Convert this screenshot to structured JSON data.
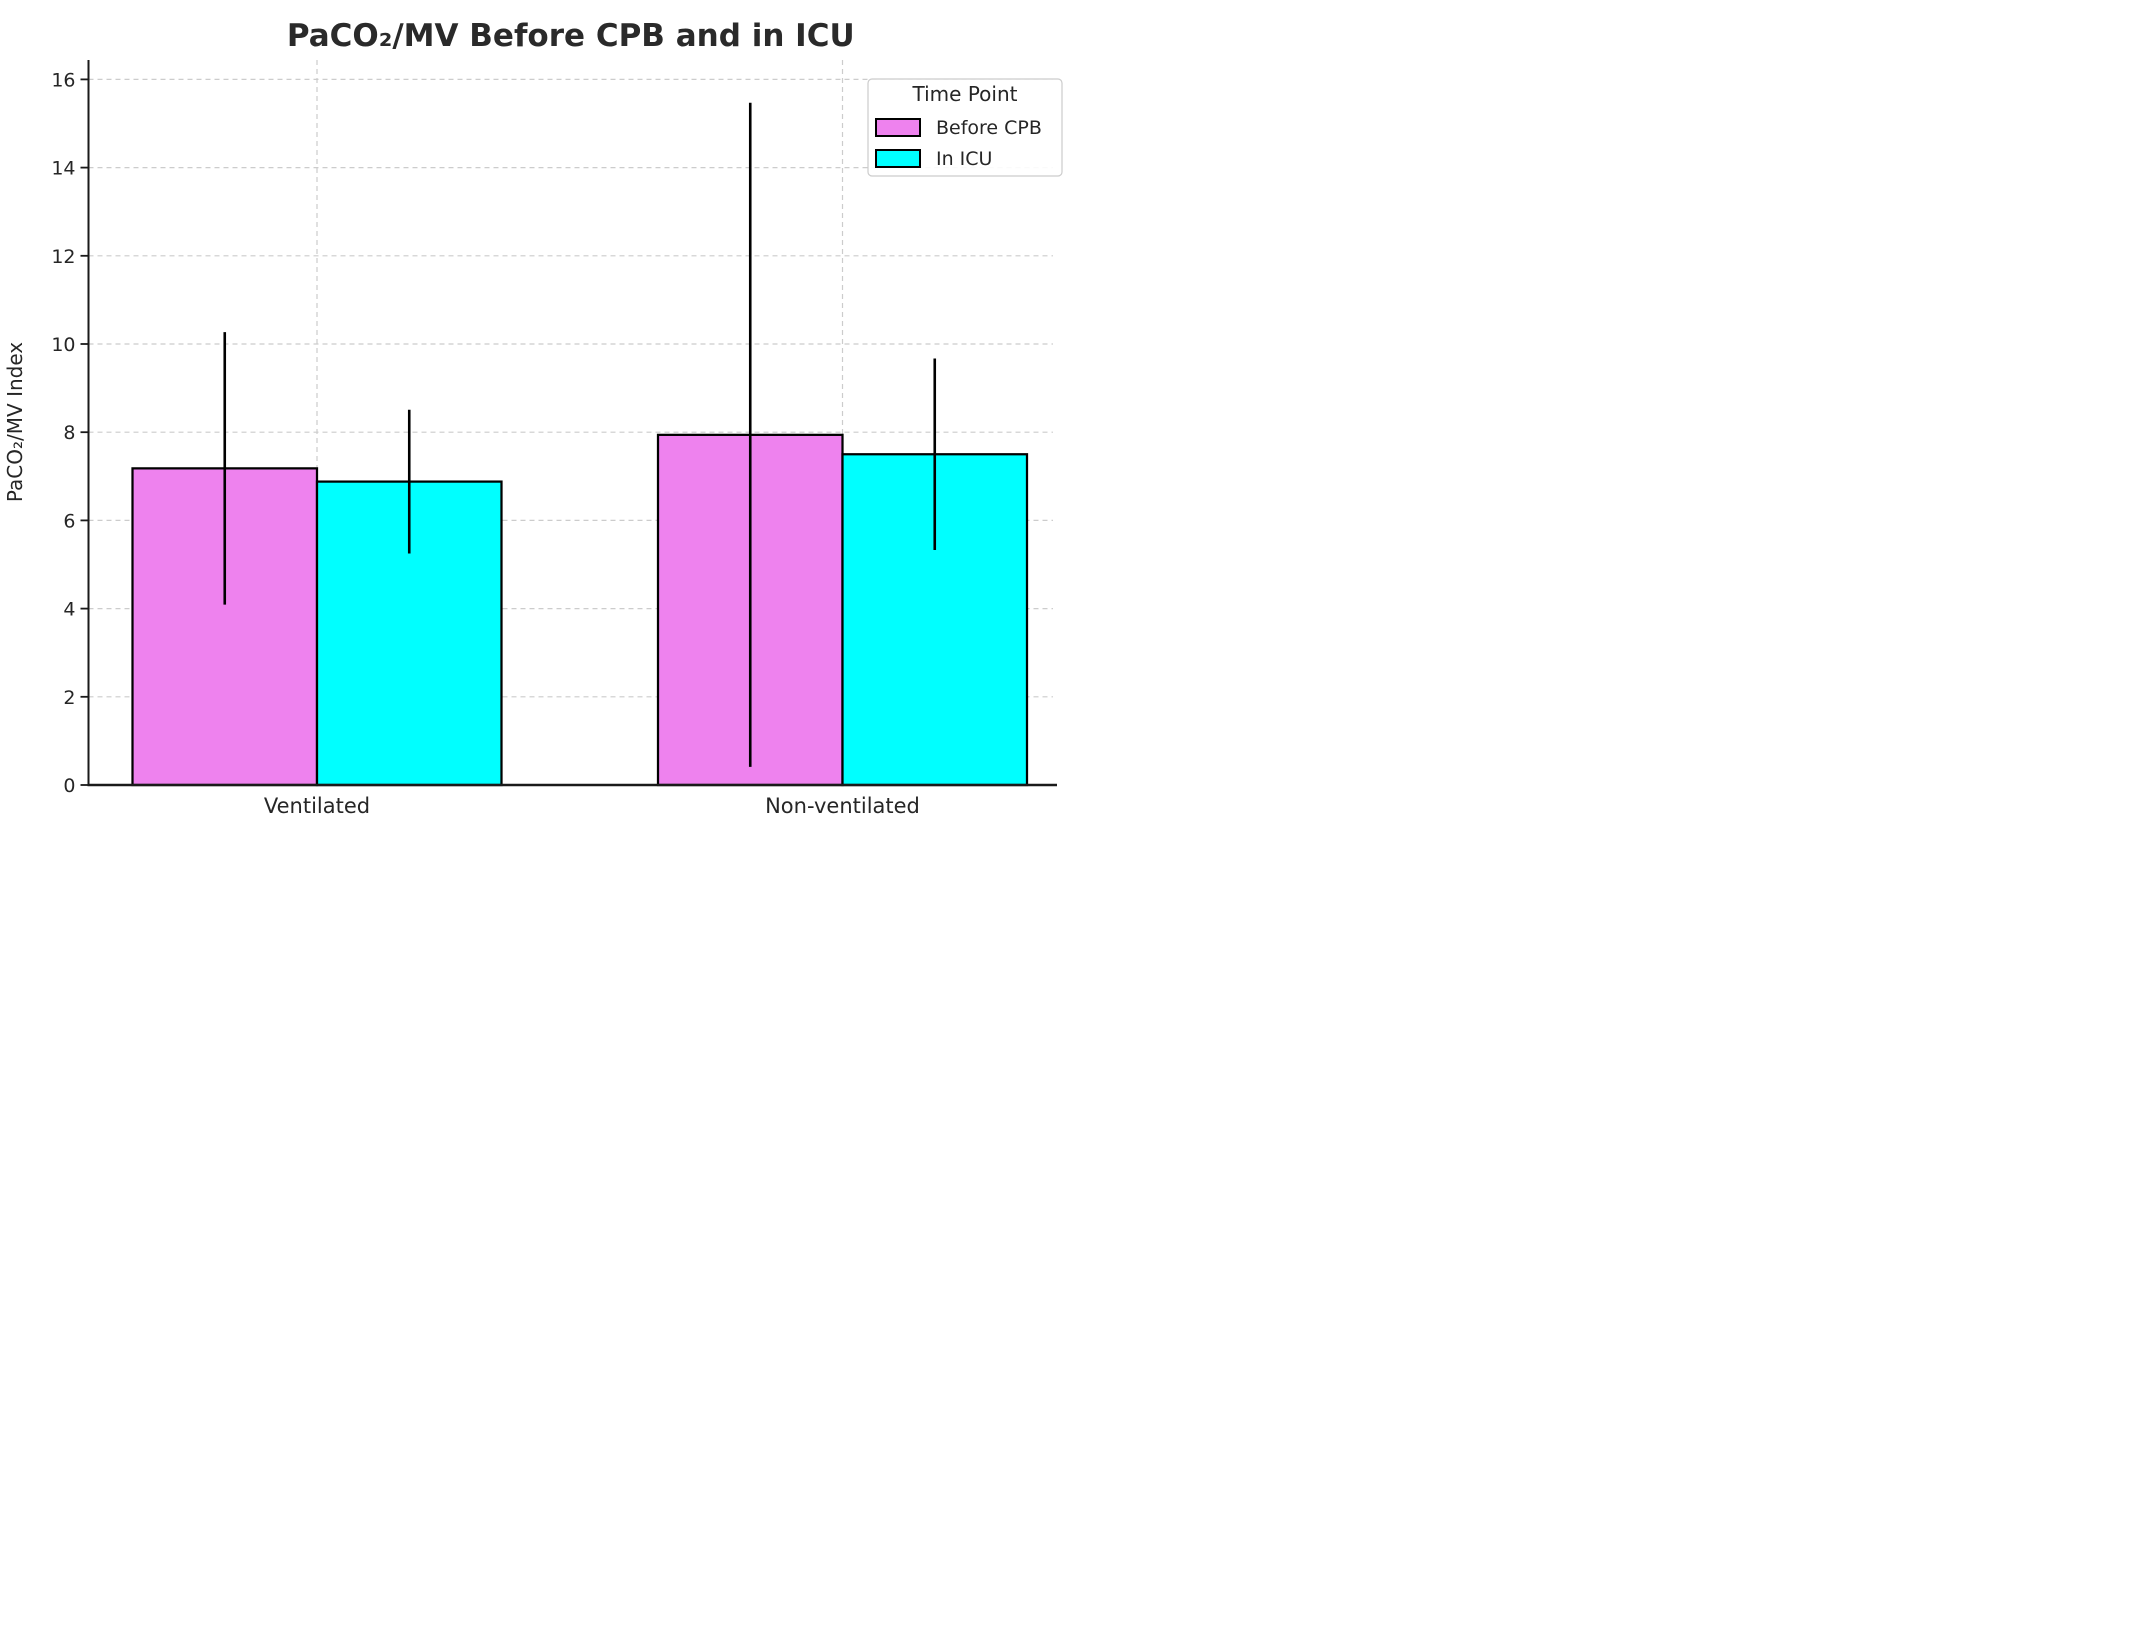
{
  "figure": {
    "background": "#ffffff",
    "text_color": "#262626"
  },
  "chart_data": {
    "type": "bar",
    "title": "PaCO₂/MV Before CPB and in ICU",
    "xlabel": "",
    "ylabel": "PaCO₂/MV Index",
    "categories": [
      "Ventilated",
      "Non-ventilated"
    ],
    "series": [
      {
        "name": "Before CPB",
        "color": "#EE82EE",
        "values": [
          7.18,
          7.94
        ],
        "errors": [
          3.09,
          7.53
        ]
      },
      {
        "name": "In ICU",
        "color": "#00FFFF",
        "values": [
          6.88,
          7.5
        ],
        "errors": [
          1.63,
          2.17
        ]
      }
    ],
    "ylim": [
      0,
      16
    ],
    "yticks": [
      0,
      2,
      4,
      6,
      8,
      10,
      12,
      14,
      16
    ],
    "grid": "dashed-both-axes",
    "grid_color": "#cccccc",
    "bar_edge_color": "#000000",
    "error_bar_color": "#000000",
    "legend": {
      "title": "Time Point",
      "position": "upper right"
    }
  }
}
